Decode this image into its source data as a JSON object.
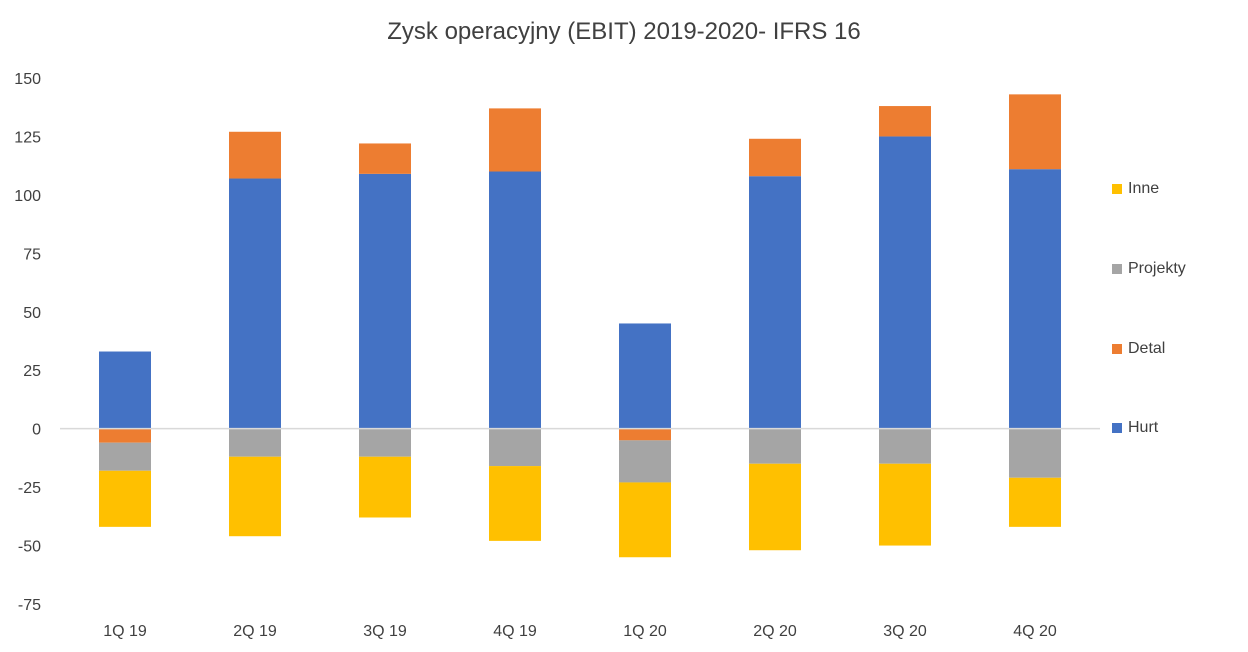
{
  "chart_data": {
    "type": "bar",
    "title": "Zysk operacyjny (EBIT) 2019-2020- IFRS 16",
    "categories": [
      "1Q 19",
      "2Q 19",
      "3Q 19",
      "4Q 19",
      "1Q 20",
      "2Q 20",
      "3Q 20",
      "4Q 20"
    ],
    "stacked": true,
    "ylim": [
      -75,
      150
    ],
    "yticks": [
      150,
      125,
      100,
      75,
      50,
      25,
      0,
      -25,
      -50,
      -75
    ],
    "grid": false,
    "legend_position": "right",
    "series": [
      {
        "name": "Hurt",
        "color": "#4472C4",
        "values": [
          33,
          107,
          109,
          110,
          45,
          108,
          125,
          111
        ]
      },
      {
        "name": "Detal",
        "color": "#ED7D31",
        "values": [
          -6,
          20,
          13,
          27,
          -5,
          16,
          13,
          32
        ]
      },
      {
        "name": "Projekty",
        "color": "#A5A5A5",
        "values": [
          -12,
          -12,
          -12,
          -16,
          -18,
          -15,
          -15,
          -21
        ]
      },
      {
        "name": "Inne",
        "color": "#FFC000",
        "values": [
          -24,
          -34,
          -26,
          -32,
          -32,
          -37,
          -35,
          -21
        ]
      }
    ]
  }
}
